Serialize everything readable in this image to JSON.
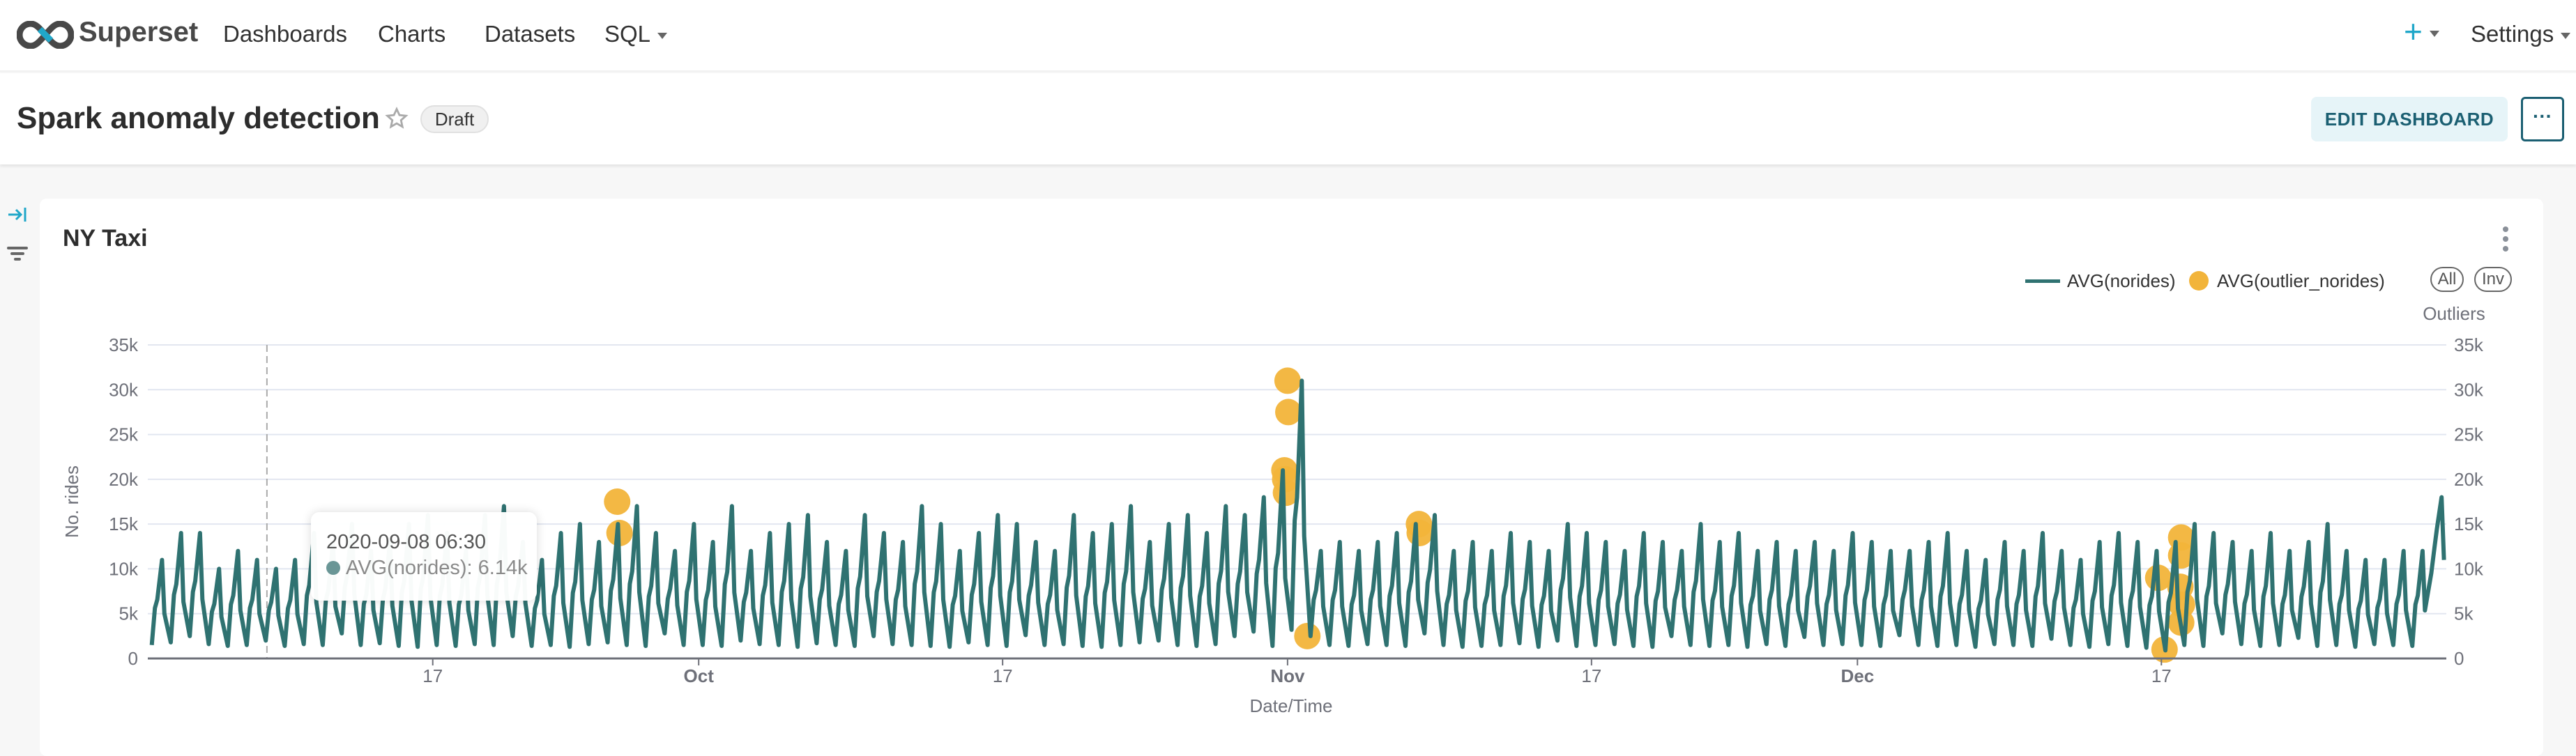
{
  "nav": {
    "brand": "Superset",
    "items": [
      {
        "label": "Dashboards"
      },
      {
        "label": "Charts"
      },
      {
        "label": "Datasets"
      },
      {
        "label": "SQL"
      }
    ],
    "plus_icon": "plus-icon",
    "settings_label": "Settings"
  },
  "header": {
    "title": "Spark anomaly detection",
    "status_badge": "Draft",
    "edit_button": "EDIT DASHBOARD",
    "more_button": "···"
  },
  "sidebar": {
    "icons": [
      "expand-arrow-icon",
      "filter-icon"
    ]
  },
  "card": {
    "title": "NY Taxi",
    "legend": {
      "line_label": "AVG(norides)",
      "dot_label": "AVG(outlier_norides)",
      "all_button": "All",
      "inv_button": "Inv"
    },
    "tooltip": {
      "date": "2020-09-08 06:30",
      "series": "AVG(norides)",
      "value": "6.14k",
      "x": "2020-09-08 06:30"
    }
  },
  "chart_data": {
    "type": "line",
    "xlabel": "Date/Time",
    "ylabel": "No. rides",
    "y2label": "Outliers",
    "xlim": [
      "2020-09-02",
      "2021-01-01"
    ],
    "ylim": [
      0,
      35000
    ],
    "grid": true,
    "legend_position": "top-right",
    "colors": {
      "line": "#2f7271",
      "outlier": "#f2b43a",
      "grid": "#e2e6f0",
      "axis": "#6e7079"
    },
    "y_ticks": [
      {
        "v": 0,
        "label": "0"
      },
      {
        "v": 5000,
        "label": "5k"
      },
      {
        "v": 10000,
        "label": "10k"
      },
      {
        "v": 15000,
        "label": "15k"
      },
      {
        "v": 20000,
        "label": "20k"
      },
      {
        "v": 25000,
        "label": "25k"
      },
      {
        "v": 30000,
        "label": "30k"
      },
      {
        "v": 35000,
        "label": "35k"
      }
    ],
    "x_ticks": [
      {
        "date": "2020-09-17",
        "label": "17",
        "bold": false
      },
      {
        "date": "2020-10-01",
        "label": "Oct",
        "bold": true
      },
      {
        "date": "2020-10-17",
        "label": "17",
        "bold": false
      },
      {
        "date": "2020-11-01",
        "label": "Nov",
        "bold": true
      },
      {
        "date": "2020-11-17",
        "label": "17",
        "bold": false
      },
      {
        "date": "2020-12-01",
        "label": "Dec",
        "bold": true
      },
      {
        "date": "2020-12-17",
        "label": "17",
        "bold": false
      }
    ],
    "series": [
      {
        "name": "AVG(norides)",
        "type": "line",
        "daily_low": [
          1500,
          1800,
          2500,
          1600,
          1400,
          1500,
          2000,
          1400,
          1600,
          1500,
          2800,
          1500,
          1700,
          1400,
          1300,
          1500,
          1400,
          1600,
          1500,
          2500,
          1400,
          1500,
          1300,
          1600,
          1800,
          1500,
          1400,
          2800,
          1500,
          1500,
          1400,
          2000,
          1600,
          1500,
          1300,
          1700,
          1500,
          1400,
          2500,
          1600,
          1500,
          1400,
          1300,
          1800,
          1500,
          1400,
          2600,
          1500,
          1600,
          1400,
          1300,
          1500,
          1800,
          2000,
          1500,
          1400,
          1600,
          2500,
          3000,
          1400,
          3200,
          2500,
          1500,
          1400,
          1600,
          1500,
          1400,
          2800,
          1500,
          1300,
          1400,
          1500,
          1700,
          1300,
          2000,
          1400,
          1500,
          1600,
          1400,
          1300,
          2500,
          1500,
          1400,
          1500,
          1300,
          1600,
          1400,
          2400,
          1500,
          1600,
          1500,
          1400,
          2600,
          1500,
          1400,
          1500,
          1300,
          1600,
          1500,
          1400,
          2200,
          1500,
          1300,
          1600,
          1400,
          1200,
          900,
          1500,
          1400,
          2800,
          1600,
          1400,
          1500,
          2300,
          1400,
          1500,
          1300,
          1600,
          1500,
          1400,
          9500
        ],
        "daily_high": [
          11000,
          14000,
          14000,
          10000,
          12000,
          11000,
          10000,
          11000,
          14000,
          13000,
          15000,
          12000,
          13000,
          15000,
          16000,
          14000,
          12000,
          16000,
          17000,
          13000,
          11000,
          14000,
          15000,
          13000,
          15000,
          17000,
          14000,
          12000,
          15000,
          13000,
          17000,
          12000,
          14000,
          15000,
          16000,
          13000,
          12000,
          16000,
          14000,
          13000,
          17000,
          15000,
          12000,
          14000,
          16000,
          15000,
          13000,
          12000,
          16000,
          14000,
          15000,
          17000,
          13000,
          15000,
          16000,
          14000,
          17000,
          16000,
          18000,
          21000,
          31000,
          12000,
          13000,
          12000,
          13000,
          14000,
          15000,
          16000,
          12000,
          13000,
          12000,
          14000,
          13000,
          12000,
          15000,
          14000,
          13000,
          12000,
          14000,
          13000,
          12000,
          15000,
          13000,
          14000,
          12000,
          13000,
          12000,
          13000,
          12000,
          14000,
          13000,
          12000,
          12000,
          13000,
          14000,
          12000,
          11000,
          13000,
          12000,
          14000,
          12000,
          11000,
          13000,
          14000,
          13000,
          12000,
          13000,
          15000,
          14000,
          13000,
          12000,
          14000,
          12000,
          13000,
          15000,
          12000,
          11000,
          11000,
          12000,
          12000,
          18000
        ]
      },
      {
        "name": "AVG(outlier_norides)",
        "type": "scatter",
        "points": [
          {
            "x": "2020-09-26 17:00",
            "y": 17500
          },
          {
            "x": "2020-09-26 20:00",
            "y": 14000
          },
          {
            "x": "2020-10-31 20:00",
            "y": 21000
          },
          {
            "x": "2020-10-31 21:00",
            "y": 20000
          },
          {
            "x": "2020-10-31 22:00",
            "y": 18500
          },
          {
            "x": "2020-11-01 00:00",
            "y": 31000
          },
          {
            "x": "2020-11-01 01:00",
            "y": 27500
          },
          {
            "x": "2020-11-02 01:00",
            "y": 2500
          },
          {
            "x": "2020-11-07 22:00",
            "y": 15000
          },
          {
            "x": "2020-11-07 23:00",
            "y": 14000
          },
          {
            "x": "2020-12-16 20:00",
            "y": 9000
          },
          {
            "x": "2020-12-17 04:00",
            "y": 1000
          },
          {
            "x": "2020-12-18 01:00",
            "y": 13500
          },
          {
            "x": "2020-12-18 01:00",
            "y": 11500
          },
          {
            "x": "2020-12-18 00:00",
            "y": 8000
          },
          {
            "x": "2020-12-18 02:00",
            "y": 6000
          },
          {
            "x": "2020-12-18 01:00",
            "y": 4000
          }
        ]
      }
    ]
  }
}
